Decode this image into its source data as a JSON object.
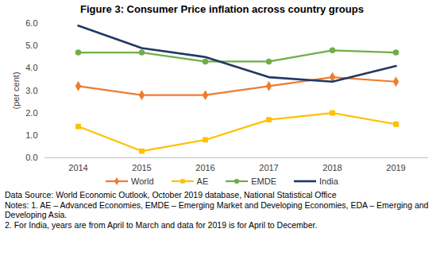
{
  "chart_data": {
    "type": "line",
    "title": "Figure 3: Consumer Price inflation across country groups",
    "y_label": "(per cent)",
    "categories": [
      "2014",
      "2015",
      "2016",
      "2017",
      "2018",
      "2019"
    ],
    "series": [
      {
        "name": "World",
        "color": "#ED7D31",
        "marker": "diamond",
        "values": [
          3.2,
          2.8,
          2.8,
          3.2,
          3.6,
          3.4
        ]
      },
      {
        "name": "AE",
        "color": "#FFC000",
        "marker": "square",
        "values": [
          1.4,
          0.3,
          0.8,
          1.7,
          2.0,
          1.5
        ]
      },
      {
        "name": "EMDE",
        "color": "#70AD47",
        "marker": "circle",
        "values": [
          4.7,
          4.7,
          4.3,
          4.3,
          4.8,
          4.7
        ]
      },
      {
        "name": "India",
        "color": "#1F3864",
        "values": [
          5.9,
          4.9,
          4.5,
          3.6,
          3.4,
          4.1
        ]
      }
    ],
    "ylim": [
      0,
      6
    ],
    "yticks": [
      {
        "value": 0,
        "label": "0.0"
      },
      {
        "value": 1,
        "label": "1.0"
      },
      {
        "value": 2,
        "label": "2.0"
      },
      {
        "value": 3,
        "label": "3.0"
      },
      {
        "value": 4,
        "label": "4.0"
      },
      {
        "value": 5,
        "label": "5.0"
      },
      {
        "value": 6,
        "label": "6.0"
      }
    ],
    "grid": false,
    "legend": "bottom",
    "annotations": [
      "Data Source: World Economic Outlook, October 2019 database, National Statistical Office",
      "Notes: 1. AE – Advanced Economies, EMDE – Emerging Market and Developing Economies, EDA – Emerging and Developing Asia.",
      "2. For India,  years are from April to March and data for 2019 is for April to December."
    ]
  }
}
